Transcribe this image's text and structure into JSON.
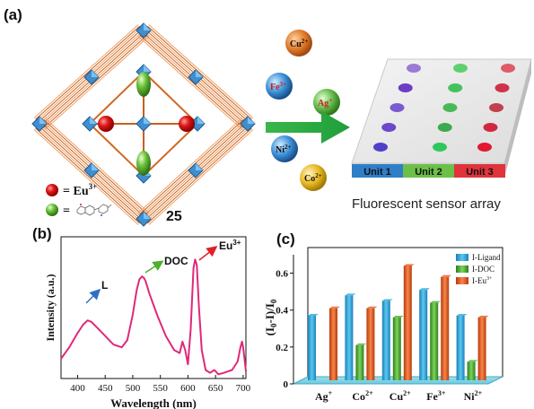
{
  "panel_a": {
    "label": "(a)",
    "compound_number": "25",
    "legend_eu": "= Eu",
    "legend_eu_sup": "3+",
    "legend_ligand_eq": "=",
    "ions": [
      {
        "base": "Cu",
        "sup": "2+",
        "color": "#e07a2a"
      },
      {
        "base": "Fe",
        "sup": "3+",
        "color": "#3a8fd6"
      },
      {
        "base": "Ag",
        "sup": "+",
        "color": "#62b84a"
      },
      {
        "base": "Ni",
        "sup": "2+",
        "color": "#3a8fd6"
      },
      {
        "base": "Co",
        "sup": "2+",
        "color": "#e8b820"
      }
    ],
    "sensor_units": [
      "Unit 1",
      "Unit 2",
      "Unit 3"
    ],
    "sensor_unit_colors": [
      "#2f7ec8",
      "#6cc04a",
      "#e0333c"
    ],
    "sensor_caption": "Fluorescent sensor array"
  },
  "panel_b": {
    "label": "(b)",
    "xlabel": "Wavelength (nm)",
    "ylabel": "Intensity (a.u.)",
    "annotations": {
      "L": "L",
      "DOC": "DOC",
      "Eu": "Eu",
      "Eu_sup": "3+"
    },
    "line_color": "#e0287a"
  },
  "panel_c": {
    "label": "(c)",
    "ylabel_html": "(I0-I)/I0"
  },
  "chart_data": [
    {
      "type": "line",
      "xlabel": "Wavelength (nm)",
      "ylabel": "Intensity (a.u.)",
      "xlim": [
        370,
        705
      ],
      "xticks": [
        400,
        450,
        500,
        550,
        600,
        650,
        700
      ],
      "ylim": [
        0,
        1
      ],
      "x": [
        370,
        385,
        400,
        410,
        418,
        425,
        435,
        450,
        465,
        480,
        490,
        500,
        507,
        512,
        517,
        520,
        523,
        530,
        545,
        560,
        575,
        585,
        590,
        595,
        600,
        605,
        610,
        613,
        616,
        620,
        625,
        632,
        640,
        648,
        655,
        665,
        680,
        690,
        695,
        698,
        700,
        703,
        705
      ],
      "y": [
        0.14,
        0.22,
        0.32,
        0.38,
        0.41,
        0.4,
        0.36,
        0.3,
        0.24,
        0.22,
        0.27,
        0.45,
        0.62,
        0.7,
        0.72,
        0.71,
        0.69,
        0.6,
        0.44,
        0.3,
        0.2,
        0.18,
        0.26,
        0.2,
        0.1,
        0.35,
        0.78,
        0.84,
        0.8,
        0.5,
        0.2,
        0.06,
        0.04,
        0.06,
        0.03,
        0.04,
        0.06,
        0.12,
        0.22,
        0.26,
        0.22,
        0.12,
        0.05
      ]
    },
    {
      "type": "bar",
      "categories": [
        "Ag+",
        "Co2+",
        "Cu2+",
        "Fe3+",
        "Ni2+"
      ],
      "category_labels": [
        {
          "base": "Ag",
          "sup": "+"
        },
        {
          "base": "Co",
          "sup": "2+"
        },
        {
          "base": "Cu",
          "sup": "2+"
        },
        {
          "base": "Fe",
          "sup": "3+"
        },
        {
          "base": "Ni",
          "sup": "2+"
        }
      ],
      "ylabel": "(I0-I)/I0",
      "ylim": [
        0,
        0.7
      ],
      "yticks": [
        0,
        0.2,
        0.4,
        0.6
      ],
      "series": [
        {
          "name": "I-Ligand",
          "color": "#2aa6d8",
          "values": [
            0.35,
            0.46,
            0.43,
            0.49,
            0.35
          ]
        },
        {
          "name": "I-DOC",
          "color": "#4caf2e",
          "values": [
            0.0,
            0.19,
            0.34,
            0.42,
            0.1
          ]
        },
        {
          "name": "I-Eu",
          "name_sup": "3+",
          "color": "#e8541e",
          "values": [
            0.39,
            0.39,
            0.62,
            0.56,
            0.34
          ]
        }
      ],
      "legend_position": "top-right"
    }
  ]
}
